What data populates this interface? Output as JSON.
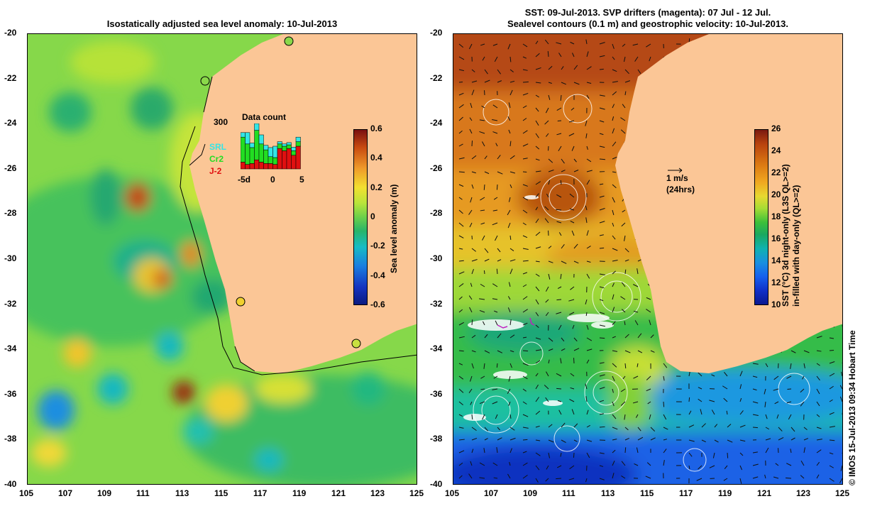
{
  "left": {
    "title": "Isostatically adjusted sea level anomaly: 10-Jul-2013",
    "colorbar_label": "Sea level anomaly (m)",
    "colorbar_ticks": [
      "0.6",
      "0.4",
      "0.2",
      "0",
      "-0.2",
      "-0.4",
      "-0.6"
    ],
    "inset": {
      "title": "Data count",
      "max_label": "300",
      "x_ticks": [
        "-5d",
        "0",
        "5"
      ],
      "legend": [
        {
          "label": "SRL",
          "color": "#33e6e6"
        },
        {
          "label": "Cr2",
          "color": "#22dd22"
        },
        {
          "label": "J-2",
          "color": "#e01010"
        }
      ],
      "bars": [
        {
          "srl": 0.1,
          "cr2": 0.55,
          "j2": 0.15
        },
        {
          "srl": 0.25,
          "cr2": 0.45,
          "j2": 0.1
        },
        {
          "srl": 0.1,
          "cr2": 0.35,
          "j2": 0.12
        },
        {
          "srl": 0.15,
          "cr2": 0.65,
          "j2": 0.2
        },
        {
          "srl": 0.2,
          "cr2": 0.4,
          "j2": 0.15
        },
        {
          "srl": 0.1,
          "cr2": 0.3,
          "j2": 0.12
        },
        {
          "srl": 0.2,
          "cr2": 0.15,
          "j2": 0.12
        },
        {
          "srl": 0.25,
          "cr2": 0.15,
          "j2": 0.1
        },
        {
          "srl": 0.05,
          "cr2": 0.1,
          "j2": 0.45
        },
        {
          "srl": 0.05,
          "cr2": 0.1,
          "j2": 0.4
        },
        {
          "srl": 0.05,
          "cr2": 0.08,
          "j2": 0.45
        },
        {
          "srl": 0.08,
          "cr2": 0.1,
          "j2": 0.3
        },
        {
          "srl": 0.1,
          "cr2": 0.1,
          "j2": 0.5
        }
      ]
    }
  },
  "right": {
    "title_line1": "SST: 09-Jul-2013. SVP drifters (magenta): 07 Jul - 12 Jul.",
    "title_line2": "Sealevel contours (0.1 m) and geostrophic velocity: 10-Jul-2013.",
    "colorbar_label_line1": "SST (°C) 3d night-only (L3S QL>=2)",
    "colorbar_label_line2": "in-filled with day-only (QL>=2)",
    "colorbar_ticks": [
      "26",
      "24",
      "22",
      "20",
      "18",
      "16",
      "14",
      "12",
      "10"
    ],
    "scale_arrow_speed": "1 m/s",
    "scale_arrow_period": "(24hrs)"
  },
  "axes": {
    "y_ticks": [
      "-20",
      "-22",
      "-24",
      "-26",
      "-28",
      "-30",
      "-32",
      "-34",
      "-36",
      "-38",
      "-40"
    ],
    "x_ticks": [
      "105",
      "107",
      "109",
      "111",
      "113",
      "115",
      "117",
      "119",
      "121",
      "123",
      "125"
    ]
  },
  "credit": "© IMOS 15-Jul-2013 09:34 Hobart Time",
  "colors": {
    "land": "#fbc696",
    "sla_gradient": [
      "#7a1010",
      "#c84a10",
      "#ef9a2a",
      "#f2e030",
      "#b9e43a",
      "#6bd04a",
      "#27b46a",
      "#17bcc4",
      "#1a7ee0",
      "#1434c0",
      "#0a1a80"
    ],
    "sst_gradient": [
      "#7a1a10",
      "#b8420e",
      "#dc7a12",
      "#f0a820",
      "#e8d830",
      "#a6dc34",
      "#3cc03a",
      "#1aa860",
      "#10b2b0",
      "#1890e0",
      "#1660ee",
      "#1030c8",
      "#0a1890"
    ]
  }
}
